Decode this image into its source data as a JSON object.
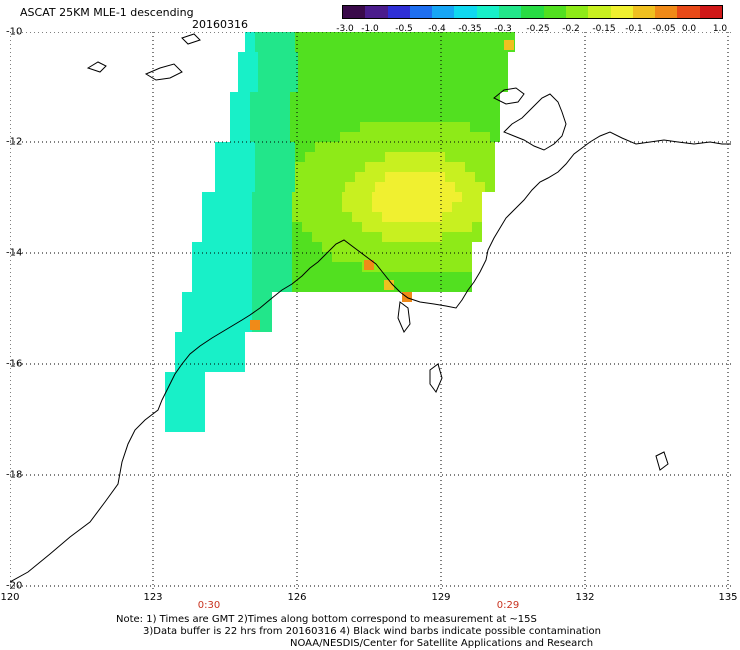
{
  "header": {
    "title": "ASCAT 25KM MLE-1 descending",
    "date": "20160316"
  },
  "colorbar": {
    "colors": [
      "#3a0a4a",
      "#4b1c8c",
      "#2f2fd6",
      "#1e6ff0",
      "#17a6f5",
      "#10d8f0",
      "#18f0c8",
      "#22e68a",
      "#28dc44",
      "#52e020",
      "#8eea18",
      "#c8f020",
      "#f0f030",
      "#f0c020",
      "#f08a18",
      "#e84a18",
      "#d01818"
    ],
    "labels": [
      "-3.0",
      "-1.0",
      "-0.5",
      "-0.4",
      "-0.35",
      "-0.3",
      "-0.25",
      "-0.2",
      "-0.15",
      "-0.1",
      "-0.05",
      "0.0",
      "1.0"
    ]
  },
  "axes": {
    "lat_labels": [
      "-10",
      "-12",
      "-14",
      "-16",
      "-18",
      "-20"
    ],
    "lon_labels": [
      "120",
      "123",
      "126",
      "129",
      "132",
      "135"
    ],
    "time_labels": [
      "0:30",
      "0:29"
    ]
  },
  "notes": {
    "line1": "Note: 1) Times are GMT 2)Times along bottom correspond to measurement at ~15S",
    "line2": "3)Data buffer is 22 hrs from 20160316 4) Black wind barbs indicate possible contamination",
    "line3": "NOAA/NESDIS/Center for Satellite Applications and Research"
  },
  "map": {
    "region": "Northwest Australia / Timor Sea",
    "lat_range": [
      -20,
      -10
    ],
    "lon_range": [
      120,
      135
    ],
    "data_color_scheme": [
      "cyan",
      "green",
      "yellow",
      "orange"
    ]
  }
}
